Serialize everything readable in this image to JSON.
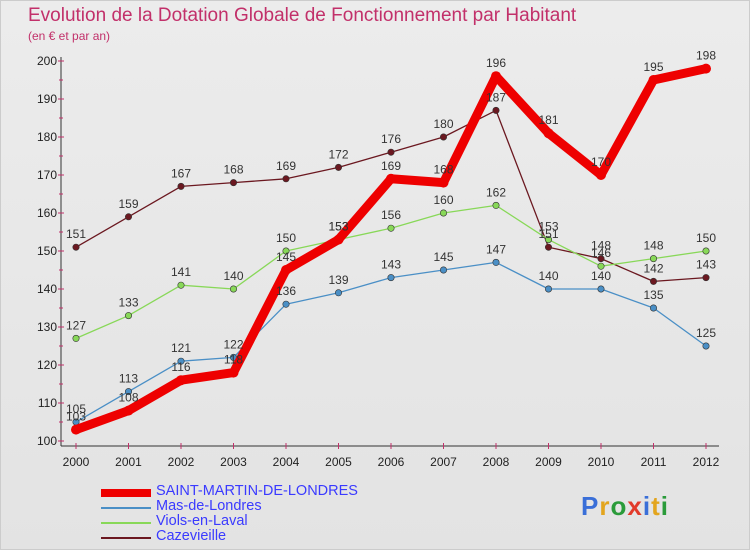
{
  "title": "Evolution de la Dotation Globale de Fonctionnement par Habitant",
  "subtitle": "(en € et par an)",
  "logo_text": "Proxiti",
  "colors": {
    "SAINT-MARTIN-DE-LONDRES": "#ee0000",
    "Mas-de-Londres": "#4a8fc6",
    "Viols-en-Laval": "#88d858",
    "Cazevieille": "#6b1820",
    "title": "#c2306a",
    "legend_text": "#3a3aff"
  },
  "chart_data": {
    "type": "line",
    "title": "Evolution de la Dotation Globale de Fonctionnement par Habitant",
    "subtitle": "(en € et par an)",
    "xlabel": "",
    "ylabel": "",
    "ylim": [
      100,
      200
    ],
    "yticks": [
      100,
      110,
      120,
      130,
      140,
      150,
      160,
      170,
      180,
      190,
      200
    ],
    "grid": false,
    "legend_position": "bottom-left",
    "categories": [
      "2000",
      "2001",
      "2002",
      "2003",
      "2004",
      "2005",
      "2006",
      "2007",
      "2008",
      "2009",
      "2010",
      "2011",
      "2012"
    ],
    "series": [
      {
        "name": "Cazevieille",
        "values": [
          151,
          159,
          167,
          168,
          169,
          172,
          176,
          180,
          187,
          151,
          148,
          142,
          143
        ]
      },
      {
        "name": "Viols-en-Laval",
        "values": [
          127,
          133,
          141,
          140,
          150,
          153,
          156,
          160,
          162,
          153,
          146,
          148,
          150
        ]
      },
      {
        "name": "Mas-de-Londres",
        "values": [
          105,
          113,
          121,
          122,
          136,
          139,
          143,
          145,
          147,
          140,
          140,
          135,
          125
        ]
      },
      {
        "name": "SAINT-MARTIN-DE-LONDRES",
        "values": [
          103,
          108,
          116,
          118,
          145,
          153,
          169,
          168,
          196,
          181,
          170,
          195,
          198
        ]
      }
    ]
  },
  "legend": [
    {
      "name": "SAINT-MARTIN-DE-LONDRES"
    },
    {
      "name": "Mas-de-Londres"
    },
    {
      "name": "Viols-en-Laval"
    },
    {
      "name": "Cazevieille"
    }
  ]
}
